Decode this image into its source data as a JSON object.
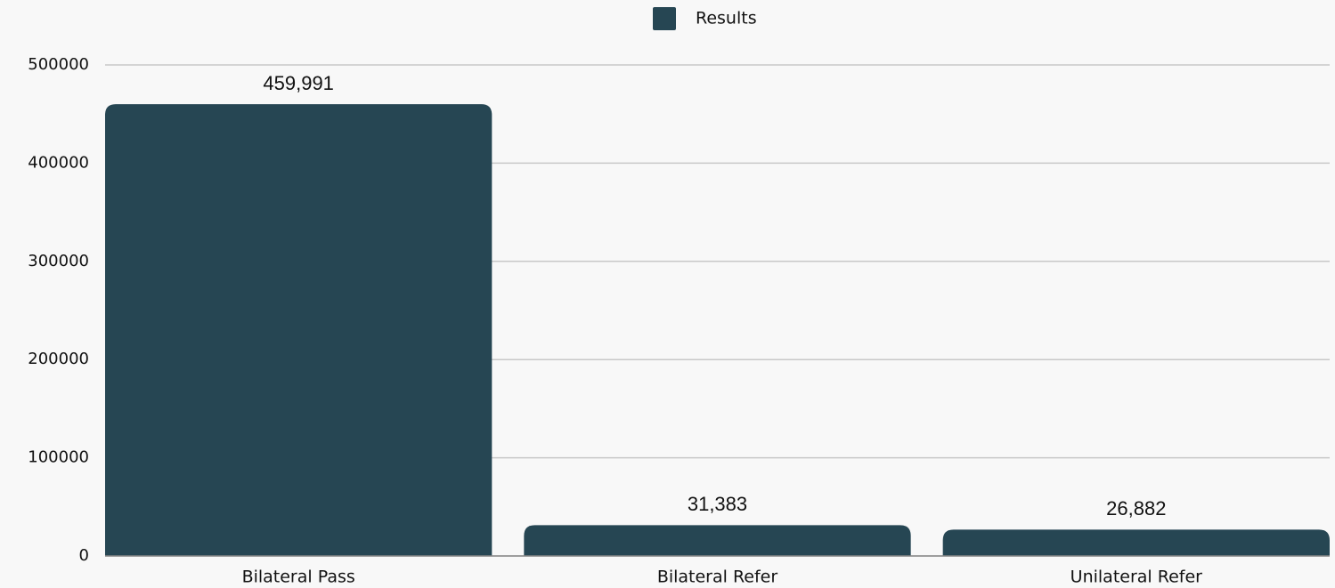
{
  "chart_data": {
    "type": "bar",
    "categories": [
      "Bilateral Pass",
      "Bilateral Refer",
      "Unilateral Refer"
    ],
    "series": [
      {
        "name": "Results",
        "color": "#264653",
        "values": [
          459991,
          31383,
          26882
        ],
        "value_labels": [
          "459,991",
          "31,383",
          "26,882"
        ]
      }
    ],
    "ylim": [
      0,
      500000
    ],
    "yticks": [
      0,
      100000,
      200000,
      300000,
      400000,
      500000
    ],
    "grid": true,
    "legend": "top"
  }
}
